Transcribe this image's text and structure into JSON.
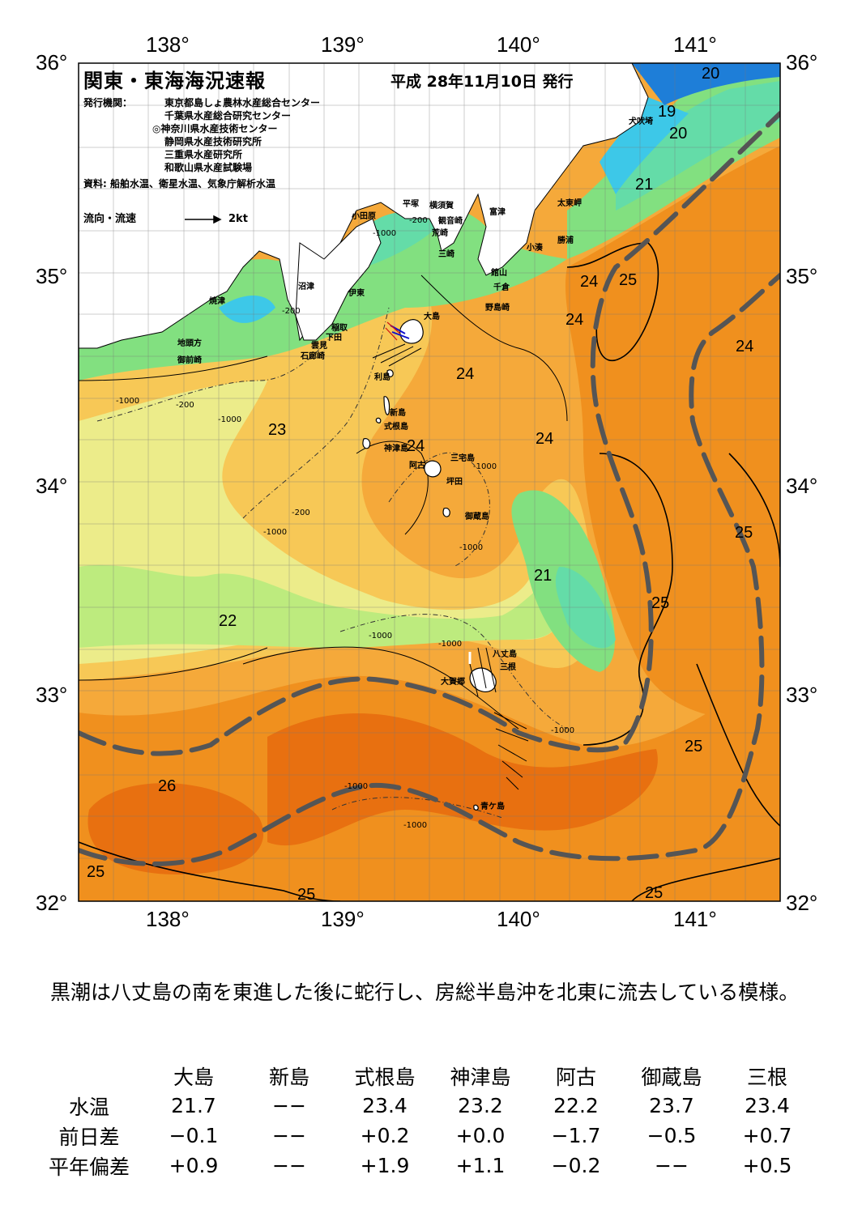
{
  "map": {
    "title": "関東・東海海況速報",
    "issued": "平成 28年11月10日 発行",
    "publisher_label": "発行機関：",
    "publishers": [
      "東京都島しょ農林水産総合センター",
      "千葉県水産総合研究センター",
      "◎神奈川県水産技術センター",
      "静岡県水産技術研究所",
      "三重県水産研究所",
      "和歌山県水産試験場"
    ],
    "sources": "資料: 船舶水温、衛星水温、気象庁解析水温",
    "flow_label": "流向・流速",
    "flow_scale": "2kt",
    "lon_labels": [
      "138°",
      "139°",
      "140°",
      "141°"
    ],
    "lat_labels": [
      "36°",
      "35°",
      "34°",
      "33°",
      "32°"
    ],
    "isotherm_labels": [
      "20",
      "19",
      "20",
      "21",
      "24",
      "25",
      "24",
      "24",
      "24",
      "23",
      "24",
      "24",
      "25",
      "21",
      "25",
      "22",
      "25",
      "26",
      "25",
      "25",
      "25"
    ],
    "depth_labels": [
      "-200",
      "-1000",
      "-200",
      "-1000",
      "-200",
      "-1000",
      "-200",
      "-1000",
      "-1000",
      "-1000",
      "-1000",
      "-1000",
      "-1000",
      "-1000",
      "-1000"
    ],
    "places": [
      "犬吠埼",
      "太東岬",
      "勝浦",
      "小湊",
      "横須賀",
      "観音崎",
      "富津",
      "平塚",
      "荒崎",
      "三崎",
      "小田原",
      "館山",
      "千倉",
      "野島崎",
      "沼津",
      "伊東",
      "大島",
      "焼津",
      "稲取",
      "下田",
      "雲見",
      "石廊崎",
      "地頭方",
      "御前崎",
      "利島",
      "新島",
      "式根島",
      "神津島",
      "阿古",
      "三宅島",
      "坪田",
      "御蔵島",
      "八丈島",
      "三根",
      "大賀郷",
      "青ケ島"
    ],
    "colors": {
      "warm_26": "#e87010",
      "warm_25": "#f0901e",
      "warm_24": "#f5a93a",
      "temp_23": "#f7c856",
      "temp_22": "#ecec8a",
      "temp_215": "#bdeb7e",
      "cool_21": "#82e080",
      "cool_20": "#64dca8",
      "cold_19": "#3dc8e8",
      "cold_18": "#1e7ed8",
      "land": "#ffffff",
      "kuroshio_axis": "#555555"
    }
  },
  "comment": "黒潮は八丈島の南を東進した後に蛇行し、房総半島沖を北東に流去している模様。",
  "table": {
    "columns": [
      "大島",
      "新島",
      "式根島",
      "神津島",
      "阿古",
      "御蔵島",
      "三根"
    ],
    "rows": [
      {
        "label": "水温",
        "values": [
          "21.7",
          "−−",
          "23.4",
          "23.2",
          "22.2",
          "23.7",
          "23.4"
        ]
      },
      {
        "label": "前日差",
        "values": [
          "−0.1",
          "−−",
          "+0.2",
          "+0.0",
          "−1.7",
          "−0.5",
          "+0.7"
        ]
      },
      {
        "label": "平年偏差",
        "values": [
          "+0.9",
          "−−",
          "+1.9",
          "+1.1",
          "−0.2",
          "−−",
          "+0.5"
        ]
      }
    ]
  }
}
